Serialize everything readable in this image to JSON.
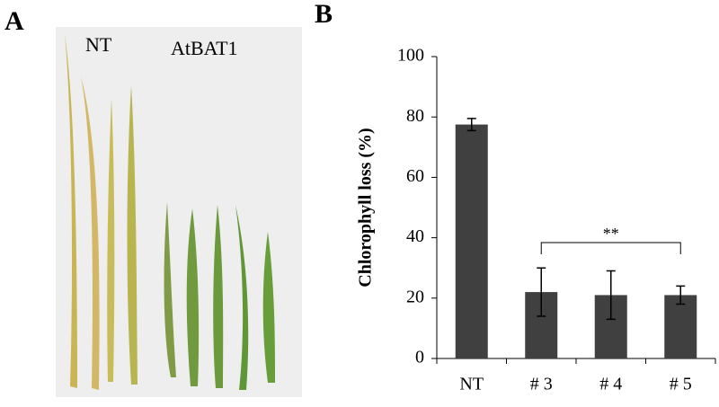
{
  "panel_a": {
    "label": "A",
    "captions": [
      "NT",
      "AtBAT1"
    ]
  },
  "chart_data": {
    "type": "bar",
    "panel_label": "B",
    "ylabel": "Chlorophyll loss (%)",
    "categories": [
      "NT",
      "# 3",
      "# 4",
      "# 5"
    ],
    "values": [
      77.5,
      22,
      21,
      21
    ],
    "errors": [
      2,
      8,
      8,
      3
    ],
    "color": "#404040",
    "ylim": [
      0,
      100
    ],
    "yticks": [
      0,
      20,
      40,
      60,
      80,
      100
    ],
    "annotation": "**"
  }
}
